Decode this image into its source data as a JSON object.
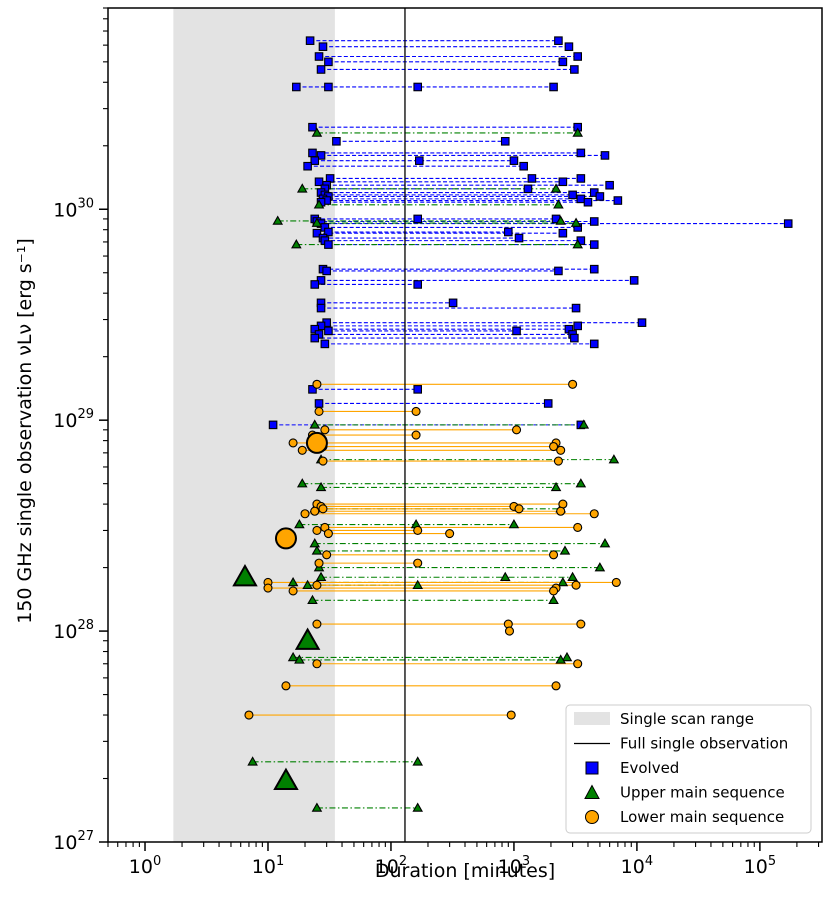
{
  "chart_data": {
    "type": "scatter",
    "title": "",
    "xlabel": "Duration [minutes]",
    "ylabel": "150 GHz single observation νLν [erg s⁻¹]",
    "xscale": "log",
    "yscale": "log",
    "xlim": [
      0.5,
      320000
    ],
    "ylim": [
      1e+27,
      9e+30
    ],
    "x_ticks": [
      {
        "value": 1,
        "base": "10",
        "exp": "0"
      },
      {
        "value": 10,
        "base": "10",
        "exp": "1"
      },
      {
        "value": 100,
        "base": "10",
        "exp": "2"
      },
      {
        "value": 1000,
        "base": "10",
        "exp": "3"
      },
      {
        "value": 10000,
        "base": "10",
        "exp": "4"
      },
      {
        "value": 100000,
        "base": "10",
        "exp": "5"
      }
    ],
    "y_ticks": [
      {
        "value": 1e+27,
        "base": "10",
        "exp": "27"
      },
      {
        "value": 1e+28,
        "base": "10",
        "exp": "28"
      },
      {
        "value": 1e+29,
        "base": "10",
        "exp": "29"
      },
      {
        "value": 1e+30,
        "base": "10",
        "exp": "30"
      }
    ],
    "single_scan_range": [
      1.7,
      35
    ],
    "full_single_observation": 130,
    "legend": {
      "position": "lower right",
      "entries": [
        {
          "key": "scan",
          "label": "Single scan range"
        },
        {
          "key": "full",
          "label": "Full single observation"
        },
        {
          "key": "evolved",
          "label": "Evolved"
        },
        {
          "key": "upper",
          "label": "Upper main sequence"
        },
        {
          "key": "lower",
          "label": "Lower main sequence"
        }
      ]
    },
    "series": [
      {
        "name": "Evolved",
        "color": "#0000ff",
        "line_color": "#0000ff",
        "marker": "square",
        "linestyle": "dashed",
        "tracks": [
          {
            "y": 6.3e+30,
            "x": [
              22,
              2300
            ]
          },
          {
            "y": 5.9e+30,
            "x": [
              28,
              2800
            ]
          },
          {
            "y": 5.3e+30,
            "x": [
              26,
              3300
            ]
          },
          {
            "y": 5e+30,
            "x": [
              31,
              2500
            ]
          },
          {
            "y": 4.6e+30,
            "x": [
              27,
              3100
            ]
          },
          {
            "y": 3.8e+30,
            "x": [
              17,
              31,
              165,
              2100
            ]
          },
          {
            "y": 2.45e+30,
            "x": [
              23,
              3300
            ]
          },
          {
            "y": 2.1e+30,
            "x": [
              36,
              850
            ]
          },
          {
            "y": 1.85e+30,
            "x": [
              23,
              3500
            ]
          },
          {
            "y": 1.8e+30,
            "x": [
              27,
              5500
            ]
          },
          {
            "y": 1.7e+30,
            "x": [
              24,
              170,
              1000
            ]
          },
          {
            "y": 1.6e+30,
            "x": [
              21,
              1200
            ]
          },
          {
            "y": 1.4e+30,
            "x": [
              32,
              1400,
              3500
            ]
          },
          {
            "y": 1.35e+30,
            "x": [
              26,
              2500
            ]
          },
          {
            "y": 1.3e+30,
            "x": [
              30,
              6000
            ]
          },
          {
            "y": 1.25e+30,
            "x": [
              29,
              1300
            ]
          },
          {
            "y": 1.2e+30,
            "x": [
              27,
              4500
            ]
          },
          {
            "y": 1.17e+30,
            "x": [
              29,
              3000
            ]
          },
          {
            "y": 1.15e+30,
            "x": [
              31,
              5000
            ]
          },
          {
            "y": 1.12e+30,
            "x": [
              28,
              3500
            ]
          },
          {
            "y": 1.1e+30,
            "x": [
              30,
              7000
            ]
          },
          {
            "y": 1.08e+30,
            "x": [
              27,
              4000
            ]
          },
          {
            "y": 9e+29,
            "x": [
              24,
              165,
              2200
            ]
          },
          {
            "y": 8.75e+29,
            "x": [
              25,
              4500
            ]
          },
          {
            "y": 8.55e+29,
            "x": [
              27,
              170000
            ]
          },
          {
            "y": 8.2e+29,
            "x": [
              29,
              3300
            ]
          },
          {
            "y": 7.8e+29,
            "x": [
              31,
              900
            ]
          },
          {
            "y": 7.7e+29,
            "x": [
              25,
              2500
            ]
          },
          {
            "y": 7.3e+29,
            "x": [
              28,
              1100
            ]
          },
          {
            "y": 7.1e+29,
            "x": [
              29,
              3500
            ]
          },
          {
            "y": 6.8e+29,
            "x": [
              31,
              4500
            ]
          },
          {
            "y": 5.2e+29,
            "x": [
              28,
              4500
            ]
          },
          {
            "y": 5.1e+29,
            "x": [
              30,
              2300
            ]
          },
          {
            "y": 4.6e+29,
            "x": [
              27,
              9500
            ]
          },
          {
            "y": 4.4e+29,
            "x": [
              24,
              165
            ]
          },
          {
            "y": 3.6e+29,
            "x": [
              27,
              320
            ]
          },
          {
            "y": 3.4e+29,
            "x": [
              27,
              3200
            ]
          },
          {
            "y": 2.9e+29,
            "x": [
              30,
              11000
            ]
          },
          {
            "y": 2.8e+29,
            "x": [
              27,
              3300
            ]
          },
          {
            "y": 2.7e+29,
            "x": [
              24,
              2800
            ]
          },
          {
            "y": 2.65e+29,
            "x": [
              31,
              1050
            ]
          },
          {
            "y": 2.55e+29,
            "x": [
              26,
              3000
            ]
          },
          {
            "y": 2.45e+29,
            "x": [
              24,
              3100
            ]
          },
          {
            "y": 2.3e+29,
            "x": [
              29,
              4500
            ]
          },
          {
            "y": 1.4e+29,
            "x": [
              23,
              165
            ]
          },
          {
            "y": 1.2e+29,
            "x": [
              26,
              1900
            ]
          },
          {
            "y": 9.5e+28,
            "x": [
              11,
              3500
            ]
          }
        ]
      },
      {
        "name": "Upper main sequence",
        "color": "#008000",
        "line_color": "#008000",
        "marker": "triangle",
        "linestyle": "dashdot",
        "tracks": [
          {
            "y": 2.3e+30,
            "x": [
              25,
              3300
            ]
          },
          {
            "y": 1.25e+30,
            "x": [
              19,
              2200
            ]
          },
          {
            "y": 1.05e+30,
            "x": [
              26,
              2300
            ]
          },
          {
            "y": 8.8e+29,
            "x": [
              12,
              2400
            ]
          },
          {
            "y": 8.6e+29,
            "x": [
              25,
              3200
            ]
          },
          {
            "y": 6.8e+29,
            "x": [
              17,
              3300
            ]
          },
          {
            "y": 9.5e+28,
            "x": [
              24,
              3700
            ]
          },
          {
            "y": 6.5e+28,
            "x": [
              27,
              6500
            ]
          },
          {
            "y": 5e+28,
            "x": [
              19,
              3500
            ]
          },
          {
            "y": 4.8e+28,
            "x": [
              27,
              2200
            ]
          },
          {
            "y": 3.8e+28,
            "x": [
              24,
              2400
            ]
          },
          {
            "y": 3.2e+28,
            "x": [
              18,
              160,
              1000
            ]
          },
          {
            "y": 2.6e+28,
            "x": [
              24,
              5500
            ]
          },
          {
            "y": 2.4e+28,
            "x": [
              25,
              2600
            ]
          },
          {
            "y": 2e+28,
            "x": [
              26,
              5000
            ]
          },
          {
            "y": 1.8e+28,
            "x": [
              27,
              850,
              3000
            ]
          },
          {
            "y": 1.7e+28,
            "x": [
              16,
              2500
            ]
          },
          {
            "y": 1.65e+28,
            "x": [
              21,
              165
            ]
          },
          {
            "y": 1.4e+28,
            "x": [
              23,
              2100
            ]
          },
          {
            "y": 7.5e+27,
            "x": [
              16,
              2700
            ]
          },
          {
            "y": 7.3e+27,
            "x": [
              18,
              2400
            ]
          },
          {
            "y": 2.4e+27,
            "x": [
              7.5,
              165
            ]
          },
          {
            "y": 1.45e+27,
            "x": [
              25,
              165
            ]
          }
        ]
      },
      {
        "name": "Lower main sequence",
        "color": "#ffa500",
        "line_color": "#ffa500",
        "marker": "circle",
        "linestyle": "solid",
        "tracks": [
          {
            "y": 1.48e+29,
            "x": [
              25,
              3000
            ]
          },
          {
            "y": 1.1e+29,
            "x": [
              26,
              160
            ]
          },
          {
            "y": 9e+28,
            "x": [
              29,
              1050
            ]
          },
          {
            "y": 8.5e+28,
            "x": [
              23,
              160
            ]
          },
          {
            "y": 7.8e+28,
            "x": [
              16,
              2200
            ]
          },
          {
            "y": 7.5e+28,
            "x": [
              28,
              2100
            ]
          },
          {
            "y": 7.2e+28,
            "x": [
              19,
              2400
            ]
          },
          {
            "y": 6.4e+28,
            "x": [
              28,
              2300
            ]
          },
          {
            "y": 4e+28,
            "x": [
              25,
              2500
            ]
          },
          {
            "y": 3.9e+28,
            "x": [
              27,
              1000
            ]
          },
          {
            "y": 3.8e+28,
            "x": [
              28,
              1100
            ]
          },
          {
            "y": 3.7e+28,
            "x": [
              24,
              2400
            ]
          },
          {
            "y": 3.6e+28,
            "x": [
              20,
              4500
            ]
          },
          {
            "y": 3.1e+28,
            "x": [
              29,
              3300
            ]
          },
          {
            "y": 3e+28,
            "x": [
              25,
              165
            ]
          },
          {
            "y": 2.9e+28,
            "x": [
              31,
              300
            ]
          },
          {
            "y": 2.3e+28,
            "x": [
              30,
              2100
            ]
          },
          {
            "y": 2.1e+28,
            "x": [
              26,
              165
            ]
          },
          {
            "y": 1.7e+28,
            "x": [
              10,
              6800
            ]
          },
          {
            "y": 1.65e+28,
            "x": [
              25,
              3200
            ]
          },
          {
            "y": 1.6e+28,
            "x": [
              10,
              2200
            ]
          },
          {
            "y": 1.55e+28,
            "x": [
              16,
              2100
            ]
          },
          {
            "y": 1.08e+28,
            "x": [
              25,
              900,
              3500
            ]
          },
          {
            "y": 1e+28,
            "x": [
              920
            ]
          },
          {
            "y": 7e+27,
            "x": [
              25,
              3300
            ]
          },
          {
            "y": 5.5e+27,
            "x": [
              14,
              2200
            ]
          },
          {
            "y": 4e+27,
            "x": [
              7,
              950
            ]
          }
        ]
      }
    ],
    "highlighted_points": [
      {
        "series": "Lower main sequence",
        "x": 25,
        "y": 7.8e+28
      },
      {
        "series": "Lower main sequence",
        "x": 14,
        "y": 2.75e+28
      },
      {
        "series": "Upper main sequence",
        "x": 6.5,
        "y": 1.8e+28
      },
      {
        "series": "Upper main sequence",
        "x": 21,
        "y": 9e+27
      },
      {
        "series": "Upper main sequence",
        "x": 14,
        "y": 1.95e+27
      }
    ]
  }
}
